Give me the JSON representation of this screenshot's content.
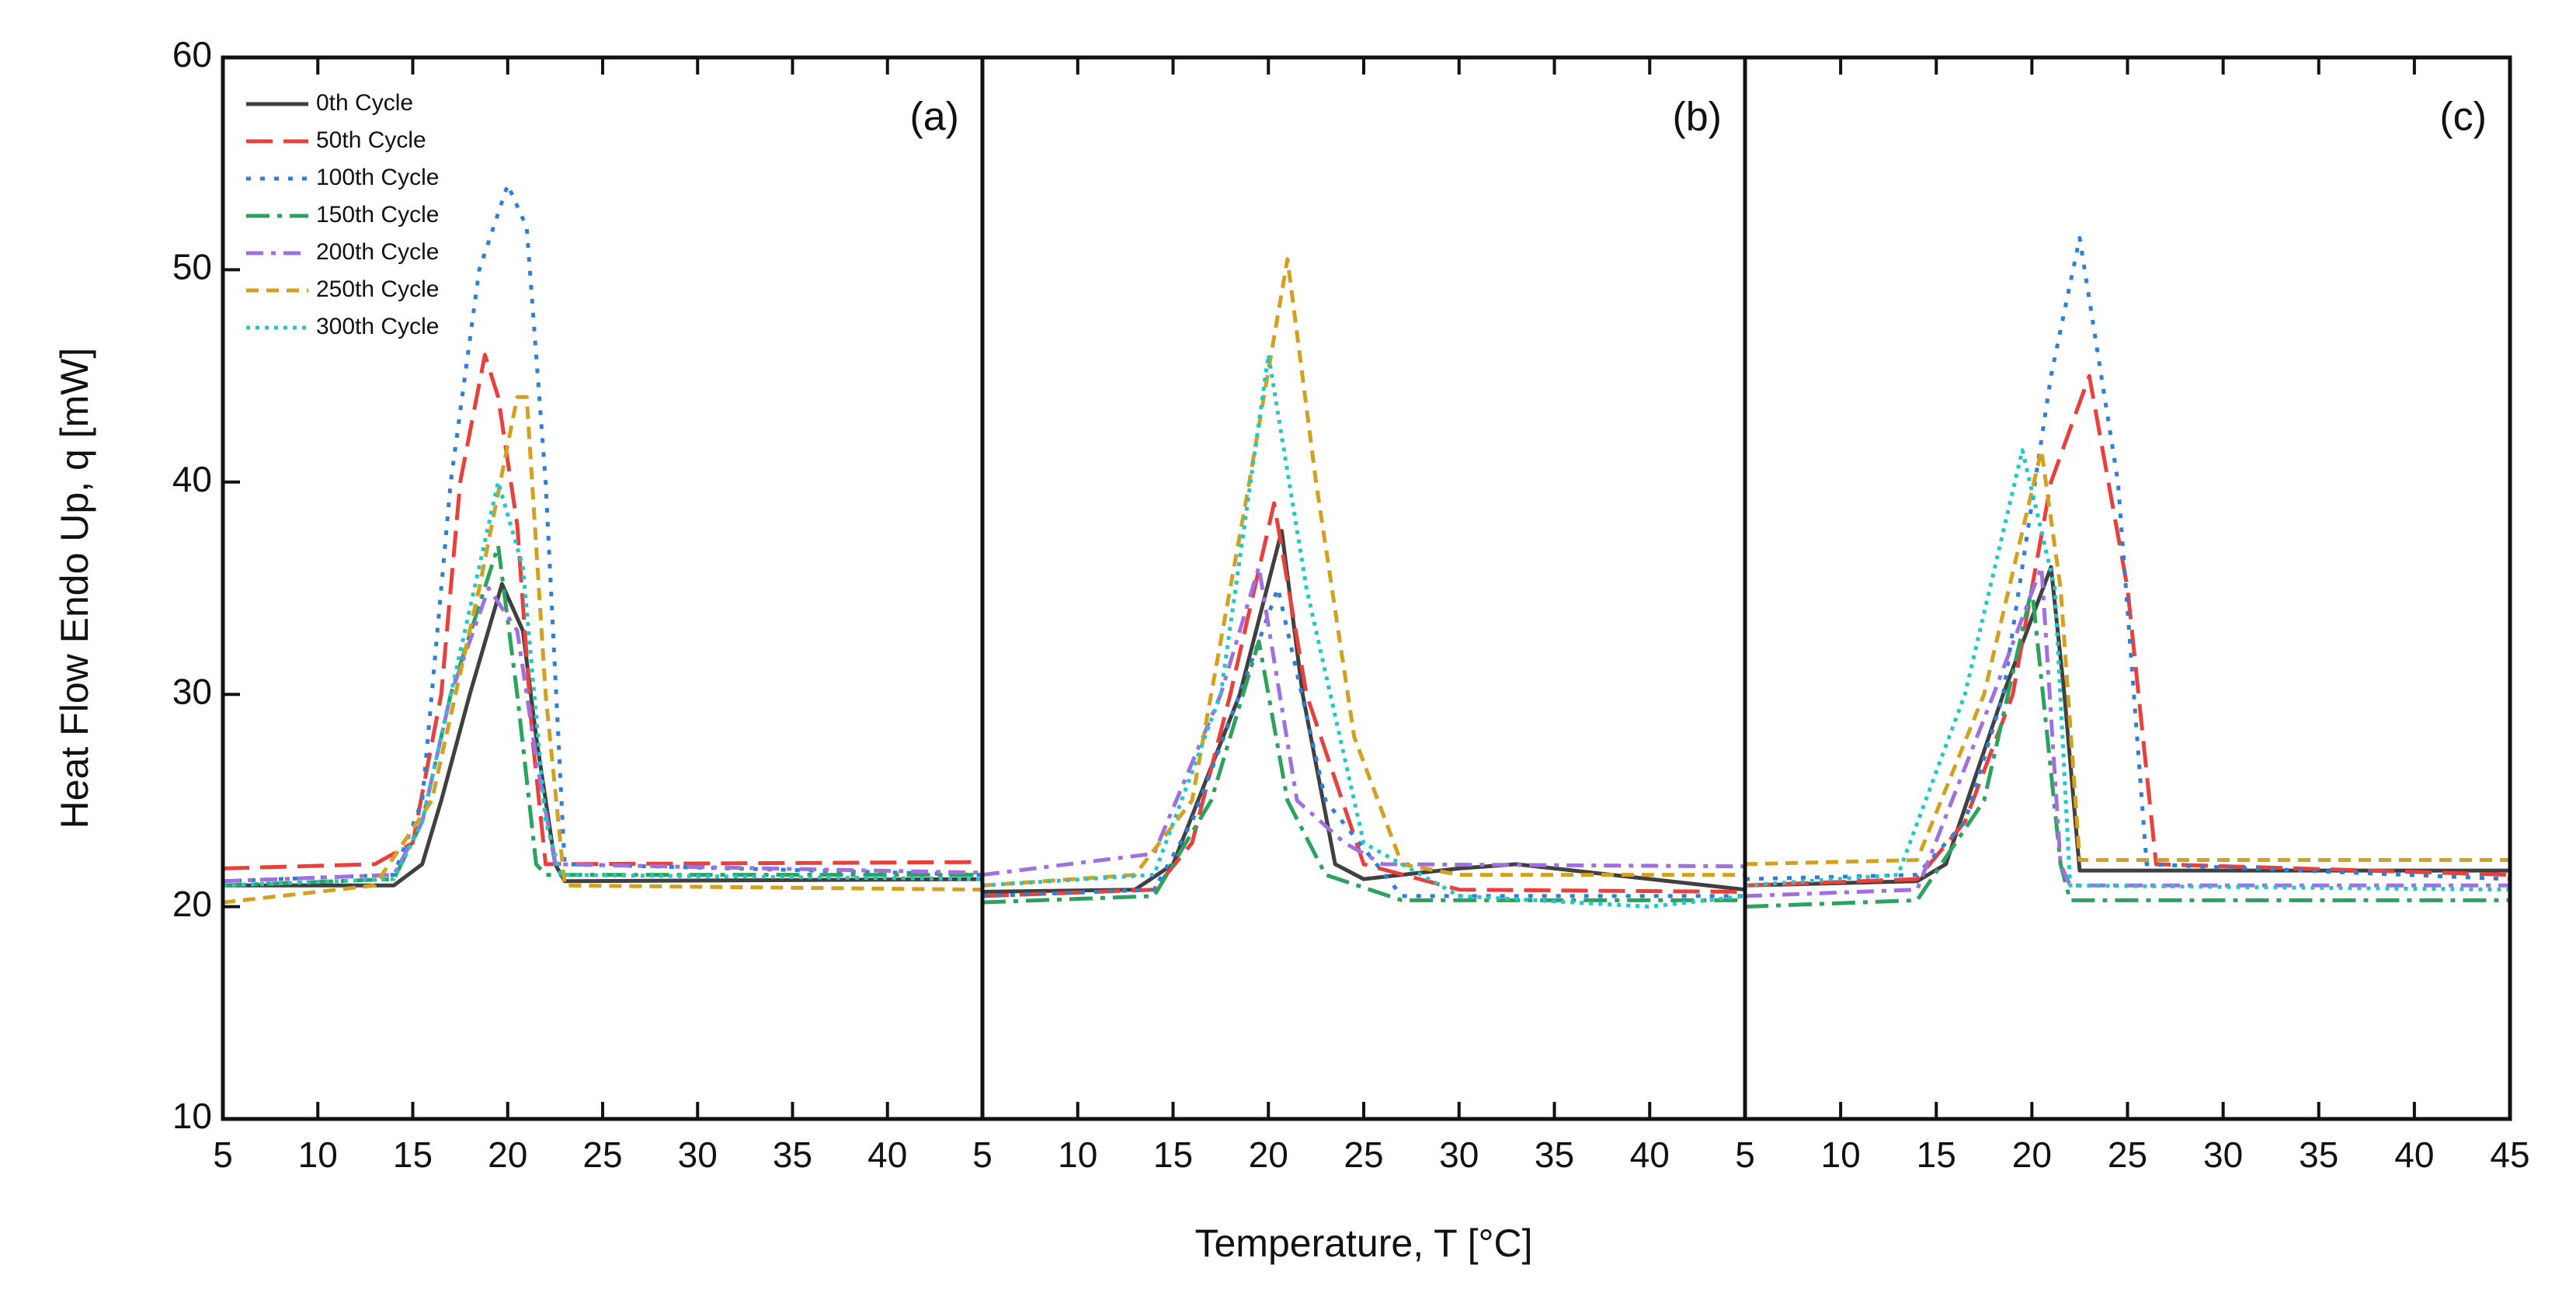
{
  "chart_data": [
    {
      "type": "line",
      "panel_label": "(a)",
      "ylabel": "Heat Flow Endo Up, q [mW]",
      "xlim": [
        5,
        45
      ],
      "xticks": [
        5,
        10,
        15,
        20,
        25,
        30,
        35,
        40
      ],
      "ylim": [
        10,
        60
      ],
      "yticks": [
        10,
        20,
        30,
        40,
        50,
        60
      ],
      "series": [
        {
          "name": "0th Cycle",
          "color": "#404040",
          "x": [
            5,
            14,
            15.5,
            16.5,
            18,
            19.7,
            20.8,
            21.5,
            22.5,
            23,
            45
          ],
          "values": [
            21,
            21,
            22,
            25,
            30,
            35.2,
            33,
            28,
            22,
            21.2,
            21.3
          ]
        },
        {
          "name": "50th Cycle",
          "color": "#e8403c",
          "x": [
            5,
            13,
            15,
            16.5,
            17.5,
            18.8,
            19.5,
            20.5,
            21.3,
            22,
            45
          ],
          "values": [
            21.8,
            22,
            23,
            30,
            40,
            46,
            44,
            38,
            28,
            22,
            22.1
          ]
        },
        {
          "name": "100th Cycle",
          "color": "#2f7fd8",
          "x": [
            5,
            14,
            15.5,
            17,
            18.5,
            20,
            21,
            22,
            23,
            45
          ],
          "values": [
            21.2,
            21.5,
            25,
            40,
            50,
            54,
            52,
            40,
            22,
            21.5
          ]
        },
        {
          "name": "150th Cycle",
          "color": "#2ca25f",
          "x": [
            5,
            14,
            15.5,
            17,
            19.5,
            20.5,
            21.5,
            22,
            45
          ],
          "values": [
            21,
            21.3,
            24,
            30,
            37,
            30,
            22,
            21.5,
            21.5
          ]
        },
        {
          "name": "200th Cycle",
          "color": "#a070e0",
          "x": [
            5,
            14,
            15.5,
            17,
            19,
            20.5,
            21.5,
            22.5,
            45
          ],
          "values": [
            21.2,
            21.5,
            24,
            30,
            35,
            33,
            27,
            22,
            21.6
          ]
        },
        {
          "name": "250th Cycle",
          "color": "#d4a020",
          "x": [
            5,
            13,
            16,
            18.5,
            20.5,
            21,
            22,
            23,
            45
          ],
          "values": [
            20.2,
            21,
            25,
            35,
            44,
            44,
            30,
            21,
            20.8
          ]
        },
        {
          "name": "300th Cycle",
          "color": "#20c8c8",
          "x": [
            5,
            14,
            15.5,
            17.5,
            19.5,
            20.8,
            22,
            22.8,
            45
          ],
          "values": [
            21,
            21.3,
            24,
            32,
            40,
            36,
            24,
            21.5,
            21.3
          ]
        }
      ]
    },
    {
      "type": "line",
      "panel_label": "(b)",
      "xlabel": "Temperature, T [°C]",
      "xlim": [
        5,
        45
      ],
      "xticks": [
        5,
        10,
        15,
        20,
        25,
        30,
        35,
        40
      ],
      "ylim": [
        10,
        60
      ],
      "series": [
        {
          "color": "#404040",
          "x": [
            5,
            13,
            15,
            18.5,
            20.7,
            21.8,
            23.5,
            25,
            30,
            33,
            38,
            45
          ],
          "values": [
            20.7,
            20.8,
            22,
            30,
            37.7,
            30,
            22,
            21.3,
            21.8,
            22,
            21.5,
            20.8
          ]
        },
        {
          "color": "#e8403c",
          "x": [
            5,
            14,
            16,
            18,
            20.3,
            22,
            25,
            30,
            45
          ],
          "values": [
            20.5,
            20.8,
            23,
            30,
            39,
            30,
            22,
            20.8,
            20.7
          ]
        },
        {
          "color": "#2f7fd8",
          "x": [
            5,
            14,
            16,
            18.5,
            20.5,
            23,
            27,
            45
          ],
          "values": [
            20.5,
            20.8,
            24,
            30,
            35,
            25,
            20.5,
            20.5
          ]
        },
        {
          "color": "#2ca25f",
          "x": [
            5,
            14,
            17,
            19.5,
            21,
            23,
            27,
            45
          ],
          "values": [
            20.2,
            20.5,
            25,
            32.5,
            25,
            21.5,
            20.3,
            20.3
          ]
        },
        {
          "color": "#a070e0",
          "x": [
            5,
            14,
            17.5,
            19.5,
            21.5,
            24,
            26,
            45
          ],
          "values": [
            21.5,
            22.5,
            30,
            36,
            25,
            23,
            22,
            21.9
          ]
        },
        {
          "color": "#d4a020",
          "x": [
            5,
            13,
            16,
            19,
            21,
            22.5,
            24.5,
            27,
            30,
            45
          ],
          "values": [
            21,
            21.5,
            25,
            40,
            50.5,
            40,
            28,
            22,
            21.5,
            21.5
          ]
        },
        {
          "color": "#20c8c8",
          "x": [
            5,
            14,
            17.5,
            20,
            22,
            25,
            30,
            40,
            45
          ],
          "values": [
            21,
            21.5,
            30,
            46,
            35,
            23,
            20.5,
            20,
            20.5
          ]
        }
      ]
    },
    {
      "type": "line",
      "panel_label": "(c)",
      "xlim": [
        5,
        45
      ],
      "xticks": [
        5,
        10,
        15,
        20,
        25,
        30,
        35,
        40,
        45
      ],
      "ylim": [
        10,
        60
      ],
      "series": [
        {
          "color": "#404040",
          "x": [
            5,
            14,
            15.5,
            18.5,
            21,
            21.7,
            22.5,
            45
          ],
          "values": [
            21,
            21.2,
            22,
            30,
            36,
            30,
            21.7,
            21.7
          ]
        },
        {
          "color": "#e8403c",
          "x": [
            5,
            14,
            16.5,
            19,
            21,
            23,
            25,
            26.5,
            45
          ],
          "values": [
            21,
            21.3,
            24,
            30,
            40,
            45,
            35,
            22,
            21.5
          ]
        },
        {
          "color": "#2f7fd8",
          "x": [
            5,
            14,
            16.5,
            18.5,
            21,
            22.5,
            24.5,
            26,
            45
          ],
          "values": [
            21.3,
            21.5,
            24,
            30,
            45,
            51.5,
            40,
            22,
            21.3
          ]
        },
        {
          "color": "#2ca25f",
          "x": [
            5,
            14,
            17.5,
            20,
            21.5,
            22,
            45
          ],
          "values": [
            20,
            20.3,
            25,
            35,
            22,
            20.3,
            20.3
          ]
        },
        {
          "color": "#a070e0",
          "x": [
            5,
            14,
            18,
            20.5,
            21.5,
            22,
            45
          ],
          "values": [
            20.5,
            20.8,
            30,
            36,
            22,
            21,
            21
          ]
        },
        {
          "color": "#d4a020",
          "x": [
            5,
            14,
            17.5,
            20.5,
            21.5,
            22.5,
            45
          ],
          "values": [
            22,
            22.2,
            30,
            41.5,
            35,
            22.2,
            22.2
          ]
        },
        {
          "color": "#20c8c8",
          "x": [
            5,
            13,
            16.5,
            19.5,
            21.2,
            22,
            45
          ],
          "values": [
            21,
            21.5,
            30,
            41.5,
            35,
            21,
            20.8
          ]
        }
      ]
    }
  ]
}
